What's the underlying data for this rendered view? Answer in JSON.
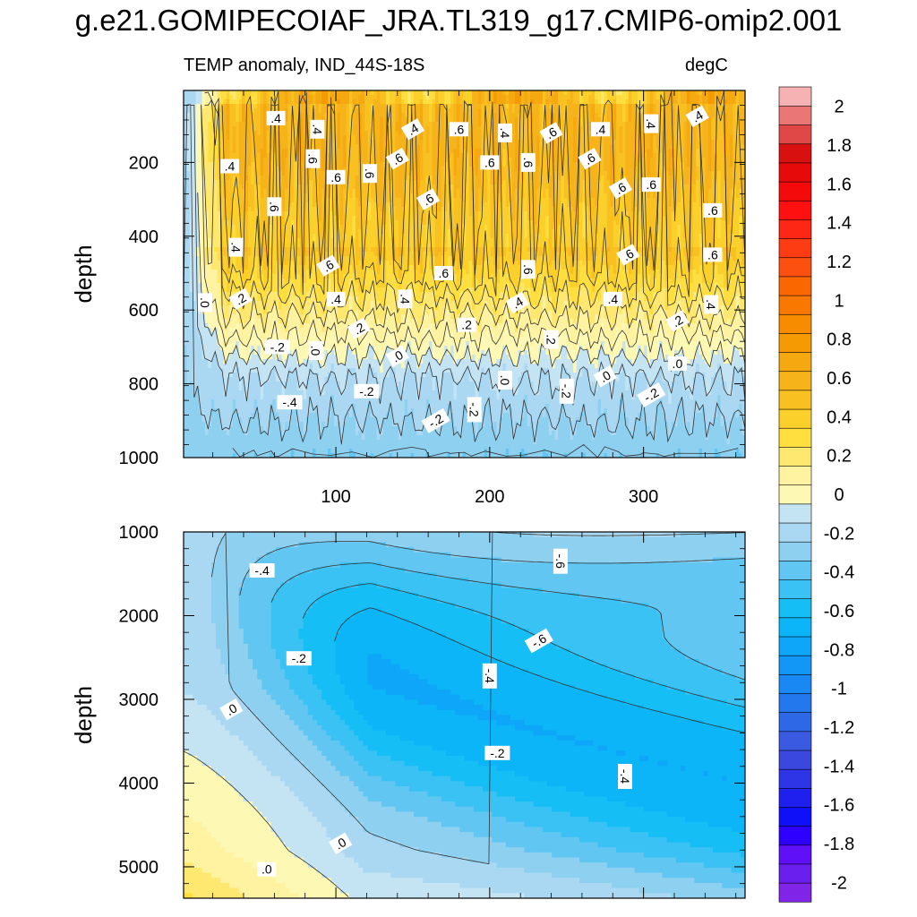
{
  "title": "g.e21.GOMIPECOIAF_JRA.TL319_g17.CMIP6-omip2.001",
  "subtitle_left": "TEMP anomaly, IND_44S-18S",
  "subtitle_right": "degC",
  "chart_data": [
    {
      "type": "heatmap",
      "panel": "upper",
      "title": "TEMP anomaly, IND_44S-18S",
      "units": "degC",
      "xlabel": "",
      "ylabel": "depth",
      "xlim": [
        1,
        366
      ],
      "ylim": [
        1000,
        5
      ],
      "y_reversed": true,
      "xticks": [
        100,
        200,
        300
      ],
      "yticks": [
        200,
        400,
        600,
        800,
        1000
      ],
      "contour_labels": [
        {
          "text": ".4",
          "x": 61,
          "y": 80
        },
        {
          "text": ".4",
          "x": 88,
          "y": 110
        },
        {
          "text": ".4",
          "x": 150,
          "y": 110
        },
        {
          "text": ".6",
          "x": 180,
          "y": 110
        },
        {
          "text": ".4",
          "x": 210,
          "y": 120
        },
        {
          "text": ".6",
          "x": 240,
          "y": 120
        },
        {
          "text": ".4",
          "x": 272,
          "y": 110
        },
        {
          "text": ".4",
          "x": 305,
          "y": 95
        },
        {
          "text": ".4",
          "x": 335,
          "y": 75
        },
        {
          "text": ".4",
          "x": 31,
          "y": 210
        },
        {
          "text": ".6",
          "x": 85,
          "y": 190
        },
        {
          "text": ".6",
          "x": 140,
          "y": 190
        },
        {
          "text": ".6",
          "x": 200,
          "y": 200
        },
        {
          "text": ".6",
          "x": 225,
          "y": 200
        },
        {
          "text": ".6",
          "x": 265,
          "y": 190
        },
        {
          "text": ".6",
          "x": 100,
          "y": 240
        },
        {
          "text": ".6",
          "x": 122,
          "y": 230
        },
        {
          "text": ".6",
          "x": 285,
          "y": 270
        },
        {
          "text": ".6",
          "x": 305,
          "y": 260
        },
        {
          "text": ".6",
          "x": 60,
          "y": 320
        },
        {
          "text": ".6",
          "x": 160,
          "y": 300
        },
        {
          "text": ".6",
          "x": 345,
          "y": 330
        },
        {
          "text": ".4",
          "x": 35,
          "y": 430
        },
        {
          "text": ".6",
          "x": 95,
          "y": 480
        },
        {
          "text": ".6",
          "x": 170,
          "y": 500
        },
        {
          "text": ".6",
          "x": 225,
          "y": 490
        },
        {
          "text": ".6",
          "x": 290,
          "y": 450
        },
        {
          "text": ".6",
          "x": 345,
          "y": 450
        },
        {
          "text": ".0",
          "x": 15,
          "y": 580
        },
        {
          "text": ".2",
          "x": 38,
          "y": 570
        },
        {
          "text": ".4",
          "x": 100,
          "y": 570
        },
        {
          "text": ".4",
          "x": 145,
          "y": 570
        },
        {
          "text": ".4",
          "x": 218,
          "y": 580
        },
        {
          "text": ".4",
          "x": 280,
          "y": 570
        },
        {
          "text": ".4",
          "x": 344,
          "y": 585
        },
        {
          "text": ".2",
          "x": 115,
          "y": 650
        },
        {
          "text": ".2",
          "x": 185,
          "y": 640
        },
        {
          "text": ".2",
          "x": 240,
          "y": 680
        },
        {
          "text": ".2",
          "x": 322,
          "y": 630
        },
        {
          "text": "-.2",
          "x": 62,
          "y": 700
        },
        {
          "text": ".0",
          "x": 87,
          "y": 710
        },
        {
          "text": ".0",
          "x": 140,
          "y": 725
        },
        {
          "text": ".0",
          "x": 322,
          "y": 745
        },
        {
          "text": ".0",
          "x": 210,
          "y": 790
        },
        {
          "text": ".0",
          "x": 275,
          "y": 780
        },
        {
          "text": "-.2",
          "x": 120,
          "y": 820
        },
        {
          "text": "-.2",
          "x": 250,
          "y": 820
        },
        {
          "text": "-.2",
          "x": 305,
          "y": 830
        },
        {
          "text": "-.4",
          "x": 70,
          "y": 850
        },
        {
          "text": "-.2",
          "x": 190,
          "y": 870
        },
        {
          "text": "-.2",
          "x": 165,
          "y": 900
        }
      ]
    },
    {
      "type": "heatmap",
      "panel": "lower",
      "title": "",
      "xlabel": "",
      "ylabel": "depth",
      "xlim": [
        1,
        366
      ],
      "ylim": [
        5375,
        1000
      ],
      "y_reversed": true,
      "yticks": [
        1000,
        2000,
        3000,
        4000,
        5000
      ],
      "contour_labels": [
        {
          "text": "-.4",
          "x": 52,
          "y": 1460
        },
        {
          "text": "-.6",
          "x": 246,
          "y": 1350
        },
        {
          "text": "-.6",
          "x": 232,
          "y": 2300
        },
        {
          "text": "-.2",
          "x": 76,
          "y": 2510
        },
        {
          "text": "-.4",
          "x": 200,
          "y": 2720
        },
        {
          "text": ".0",
          "x": 32,
          "y": 3120
        },
        {
          "text": "-.2",
          "x": 205,
          "y": 3640
        },
        {
          "text": "-.4",
          "x": 288,
          "y": 3920
        },
        {
          "text": ".0",
          "x": 103,
          "y": 4720
        },
        {
          "text": ".0",
          "x": 55,
          "y": 5030
        }
      ]
    },
    {
      "type": "colorbar",
      "levels_ascending": [
        -2.1,
        -2.0,
        -1.9,
        -1.8,
        -1.7,
        -1.6,
        -1.5,
        -1.4,
        -1.3,
        -1.2,
        -1.1,
        -1.0,
        -0.9,
        -0.8,
        -0.7,
        -0.6,
        -0.5,
        -0.4,
        -0.3,
        -0.2,
        -0.1,
        0.0,
        0.1,
        0.2,
        0.3,
        0.4,
        0.5,
        0.6,
        0.7,
        0.8,
        0.9,
        1.0,
        1.1,
        1.2,
        1.3,
        1.4,
        1.5,
        1.6,
        1.7,
        1.8,
        1.9,
        2.0,
        2.1
      ],
      "colors_ascending": [
        "#8025e8",
        "#6a1fee",
        "#5f10f6",
        "#2e00ff",
        "#1010f8",
        "#2020ee",
        "#2d35e6",
        "#3a48e0",
        "#3a5ae2",
        "#2e68e6",
        "#2478ee",
        "#1a88f2",
        "#1297f6",
        "#0ea6f8",
        "#0cb4f8",
        "#16bef6",
        "#3ac2f4",
        "#62c6f2",
        "#8ed0f0",
        "#aad8f2",
        "#c4e4f4",
        "#fdf8b4",
        "#fff2a0",
        "#ffe870",
        "#ffde40",
        "#fcd02a",
        "#f8c020",
        "#f6b31a",
        "#f5a810",
        "#f69a04",
        "#f88c00",
        "#f97800",
        "#fa6600",
        "#fc5010",
        "#fd3c14",
        "#fe2614",
        "#ff1010",
        "#f40a0a",
        "#e60a0a",
        "#d81010",
        "#e04848",
        "#ea7676",
        "#f6b2b2"
      ],
      "tick_labels": [
        "2",
        "1.8",
        "1.6",
        "1.4",
        "1.2",
        "1",
        "0.8",
        "0.6",
        "0.4",
        "0.2",
        "0",
        "-0.2",
        "-0.4",
        "-0.6",
        "-0.8",
        "-1",
        "-1.2",
        "-1.4",
        "-1.6",
        "-1.8",
        "-2"
      ],
      "tick_values": [
        2.0,
        1.8,
        1.6,
        1.4,
        1.2,
        1.0,
        0.8,
        0.6,
        0.4,
        0.2,
        0.0,
        -0.2,
        -0.4,
        -0.6,
        -0.8,
        -1.0,
        -1.2,
        -1.4,
        -1.6,
        -1.8,
        -2.0
      ]
    }
  ]
}
